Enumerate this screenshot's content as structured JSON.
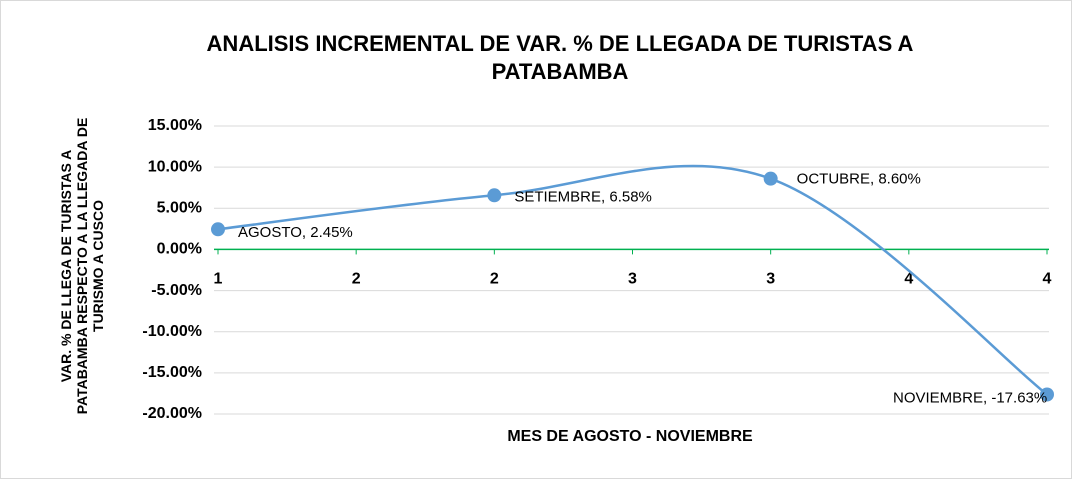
{
  "chart_data": {
    "type": "line",
    "title": "ANALISIS INCREMENTAL DE VAR. % DE LLEGADA DE TURISTAS A PATABAMBA",
    "x_label": "MES DE AGOSTO - NOVIEMBRE",
    "y_label": "VAR. %  DE LLEGA DE TURISTAS A PATABAMBA RESPECTO A  LA  LLEGADA DE TURISMO A CUSCO",
    "x": [
      1,
      2,
      3,
      4
    ],
    "series": [
      {
        "name": "VAR. %",
        "color": "#5b9bd5",
        "smooth": true,
        "values": [
          2.45,
          6.58,
          8.6,
          -17.63
        ],
        "value_labels": [
          "AGOSTO, 2.45%",
          "SETIEMBRE, 6.58%",
          "OCTUBRE, 8.60%",
          "NOVIEMBRE, -17.63%"
        ]
      }
    ],
    "xlim": [
      1,
      4
    ],
    "xticks": [
      1,
      {
        "value": 1.5,
        "label": "2"
      },
      2,
      {
        "value": 2.5,
        "label": "3"
      },
      3,
      {
        "value": 3.5,
        "label": "4"
      },
      4
    ],
    "ylim": [
      -20,
      15
    ],
    "yticks": [
      {
        "value": -20,
        "label": "-20.00%"
      },
      {
        "value": -15,
        "label": "-15.00%"
      },
      {
        "value": -10,
        "label": "-10.00%"
      },
      {
        "value": -5,
        "label": "-5.00%"
      },
      {
        "value": 0,
        "label": "0.00%"
      },
      {
        "value": 5,
        "label": "5.00%"
      },
      {
        "value": 10,
        "label": "10.00%"
      },
      {
        "value": 15,
        "label": "15.00%"
      }
    ],
    "grid": true,
    "zero_line_color": "#00b050"
  }
}
